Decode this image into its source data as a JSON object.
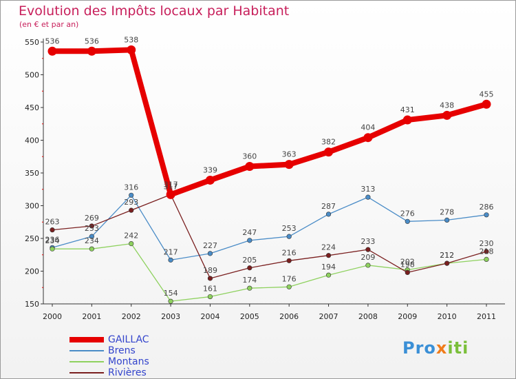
{
  "title": "Evolution des Impôts locaux par Habitant",
  "subtitle": "(en € et par an)",
  "logo": {
    "parts": [
      "Pro",
      "x",
      "iti"
    ],
    "colors": [
      "#3a8fd6",
      "#f07c1a",
      "#7bbf3b"
    ]
  },
  "chart_data": {
    "type": "line",
    "title": "Evolution des Impôts locaux par Habitant",
    "subtitle": "(en € et par an)",
    "xlabel": "",
    "ylabel": "",
    "x": [
      "2000",
      "2001",
      "2002",
      "2003",
      "2004",
      "2005",
      "2006",
      "2007",
      "2008",
      "2009",
      "2010",
      "2011"
    ],
    "ylim": [
      150,
      550
    ],
    "yticks": [
      150,
      200,
      250,
      300,
      350,
      400,
      450,
      500,
      550
    ],
    "grid": false,
    "legend_position": "bottom-left",
    "series": [
      {
        "name": "GAILLAC",
        "color": "#e60000",
        "values": [
          536,
          536,
          538,
          317,
          339,
          360,
          363,
          382,
          404,
          431,
          438,
          455
        ]
      },
      {
        "name": "Brens",
        "color": "#4a8cc7",
        "values": [
          236,
          253,
          316,
          217,
          227,
          247,
          253,
          287,
          313,
          276,
          278,
          286
        ]
      },
      {
        "name": "Montans",
        "color": "#8ed15e",
        "values": [
          234,
          234,
          242,
          154,
          161,
          174,
          176,
          194,
          209,
          202,
          212,
          218
        ]
      },
      {
        "name": "Rivières",
        "color": "#7a1f1f",
        "values": [
          263,
          269,
          293,
          317,
          189,
          205,
          216,
          224,
          233,
          198,
          212,
          230
        ]
      }
    ]
  }
}
